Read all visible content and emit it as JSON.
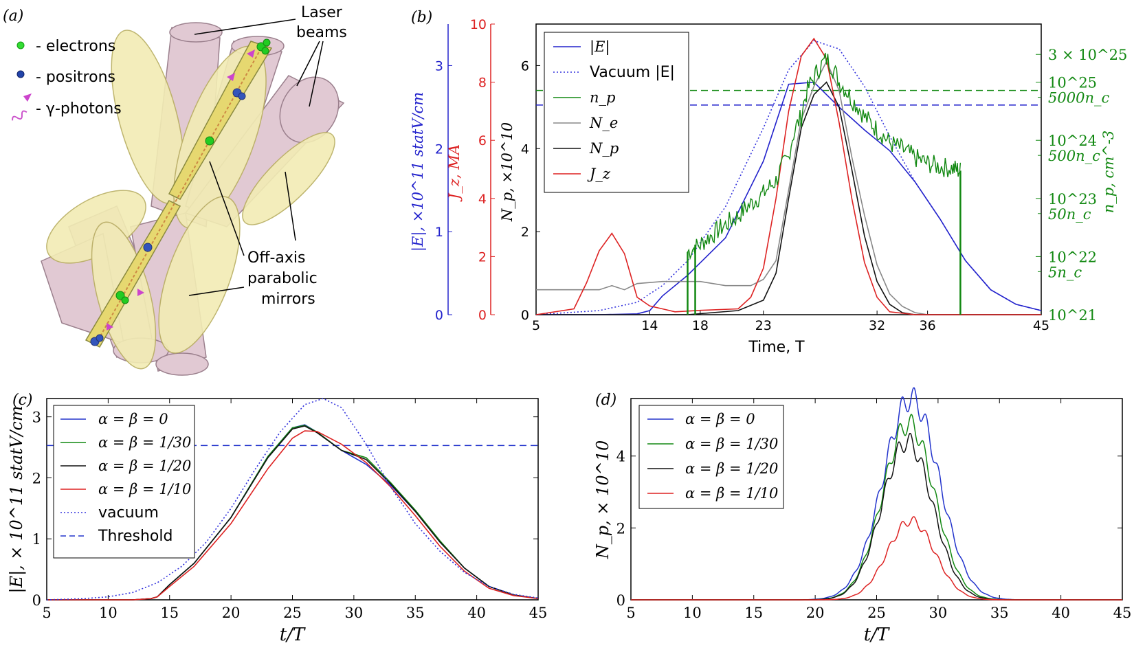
{
  "panel_a": {
    "tag": "(a)",
    "legend": {
      "electrons": "- electrons",
      "positrons": "- positrons",
      "photons": "- γ-photons"
    },
    "laser_label": [
      "Laser",
      "beams"
    ],
    "mirror_label": [
      "Off-axis",
      "parabolic",
      "mirrors"
    ],
    "colors": {
      "electron": "#22cc22",
      "positron": "#2244aa",
      "photon": "#cc44cc",
      "mirror": "#f0eab0",
      "beam": "#d9b8c8"
    }
  },
  "chart_data": [
    {
      "id": "b",
      "tag": "(b)",
      "type": "line",
      "xlabel": "Time, T",
      "xlim": [
        5,
        45
      ],
      "x_ticks": [
        "5",
        "14",
        "18",
        "23",
        "32",
        "36",
        "45"
      ],
      "y_left_np": {
        "label": "N_p, ×10^10",
        "lim": [
          0,
          7
        ],
        "ticks": [
          "0",
          "2",
          "4",
          "6"
        ]
      },
      "y_left_jz": {
        "label": "J_z, MA",
        "lim": [
          0,
          10
        ],
        "ticks": [
          "0",
          "2",
          "4",
          "6",
          "8",
          "10"
        ],
        "color": "#dd2222"
      },
      "y_left_e": {
        "label": "|E|, ×10^11 statV/cm",
        "lim": [
          0,
          3.5
        ],
        "ticks": [
          "0",
          "1",
          "2",
          "3"
        ],
        "color": "#2222cc"
      },
      "y_right": {
        "label": "n_p, cm^-3",
        "scale": "log",
        "lim": [
          1e+21,
          1e+26
        ],
        "color": "#118811",
        "ticks_power": [
          "10^21",
          "10^22",
          "10^23",
          "10^24",
          "10^25",
          "3 × 10^25"
        ],
        "ticks_nc": [
          "5n_c",
          "50n_c",
          "500n_c",
          "5000n_c"
        ]
      },
      "legend": {
        "position": "top-left",
        "entries": [
          "|E|",
          "Vacuum |E|",
          "n_p",
          "N_e",
          "N_p",
          "J_z"
        ]
      },
      "colors": {
        "E": "#2222cc",
        "vac": "#3333dd",
        "np": "#118811",
        "Ne": "#888888",
        "Np": "#111111",
        "Jz": "#dd2222"
      },
      "threshold_blue": 5.05,
      "threshold_green": 5.4,
      "series": [
        {
          "name": "|E|",
          "x": [
            5,
            10,
            13,
            14,
            15,
            17,
            20,
            23,
            25,
            27,
            29,
            31,
            33,
            35,
            37,
            39,
            41,
            43,
            45
          ],
          "y": [
            0,
            0,
            0.02,
            0.1,
            0.45,
            0.95,
            1.85,
            3.7,
            5.55,
            5.6,
            5.0,
            4.45,
            3.95,
            3.2,
            2.3,
            1.3,
            0.6,
            0.25,
            0.1
          ]
        },
        {
          "name": "Vacuum |E|",
          "x": [
            5,
            10,
            13,
            15,
            17,
            20,
            23,
            25,
            27,
            29,
            31,
            33,
            35,
            37,
            39,
            41,
            43,
            45
          ],
          "y": [
            0,
            0.1,
            0.3,
            0.7,
            1.3,
            2.6,
            4.5,
            5.9,
            6.6,
            6.4,
            5.5,
            4.3,
            3.2,
            2.3,
            1.3,
            0.6,
            0.25,
            0.1
          ]
        },
        {
          "name": "N_e",
          "x": [
            5,
            10,
            11,
            12,
            13,
            15,
            18,
            20,
            22,
            23,
            24,
            25,
            26,
            27,
            28,
            29,
            30,
            31,
            32,
            33,
            34,
            35,
            36,
            45
          ],
          "y": [
            0.6,
            0.6,
            0.7,
            0.6,
            0.75,
            0.8,
            0.8,
            0.7,
            0.7,
            0.85,
            1.3,
            3.0,
            4.7,
            5.5,
            6.1,
            5.4,
            3.8,
            2.4,
            1.2,
            0.5,
            0.2,
            0.05,
            0,
            0
          ]
        },
        {
          "name": "N_p",
          "x": [
            5,
            17,
            19,
            21,
            23,
            24,
            25,
            26,
            27,
            28,
            29,
            30,
            31,
            32,
            33,
            34,
            35,
            45
          ],
          "y": [
            0,
            0,
            0.05,
            0.1,
            0.35,
            1.0,
            2.8,
            4.5,
            5.3,
            5.6,
            5.0,
            3.5,
            1.9,
            0.8,
            0.25,
            0.05,
            0,
            0
          ]
        },
        {
          "name": "J_z",
          "x": [
            5,
            8,
            9,
            10,
            11,
            12,
            13,
            14,
            15,
            16,
            18,
            21,
            22,
            23,
            24,
            25,
            26,
            27,
            28,
            29,
            30,
            31,
            32,
            33,
            35,
            45
          ],
          "y": [
            0,
            0.2,
            1.1,
            2.2,
            2.8,
            2.1,
            0.6,
            0.3,
            0.2,
            0.1,
            0.15,
            0.2,
            0.6,
            1.6,
            4.0,
            7.0,
            8.9,
            9.5,
            8.8,
            6.6,
            4.0,
            1.8,
            0.6,
            0.1,
            0,
            0
          ]
        },
        {
          "name": "n_p",
          "x": [
            17,
            18,
            19,
            20,
            21,
            22,
            23,
            24,
            25,
            26,
            27,
            28,
            29,
            30,
            31,
            32,
            33,
            34,
            35,
            36,
            37,
            38,
            38.6
          ],
          "y": [
            1.2e+22,
            1.6e+22,
            2.4e+22,
            3.5e+22,
            5e+22,
            8e+22,
            1.2e+23,
            2e+23,
            5e+23,
            2.5e+24,
            1.2e+25,
            2.5e+25,
            1e+25,
            5e+24,
            2.5e+24,
            1.5e+24,
            9e+23,
            7e+23,
            5e+23,
            4e+23,
            3.5e+23,
            3.3e+23,
            3e+23
          ]
        }
      ]
    },
    {
      "id": "c",
      "tag": "(c)",
      "type": "line",
      "xlabel": "t/T",
      "ylabel": "|E|, × 10^11 statV/cm",
      "xlim": [
        5,
        45
      ],
      "ylim": [
        0,
        3.3
      ],
      "x_ticks": [
        "5",
        "10",
        "15",
        "20",
        "25",
        "30",
        "35",
        "40",
        "45"
      ],
      "y_ticks": [
        "0",
        "1",
        "2",
        "3"
      ],
      "threshold": 2.53,
      "legend": {
        "position": "top-left",
        "entries": [
          "α = β = 0",
          "α = β = 1/30",
          "α = β = 1/20",
          "α = β = 1/10",
          "vacuum",
          "Threshold"
        ]
      },
      "series": [
        {
          "name": "α = β = 0",
          "color": "#2233cc",
          "x": [
            5,
            12,
            13.5,
            14,
            15,
            17,
            20,
            23,
            25,
            26,
            27,
            29,
            31,
            33,
            35,
            37,
            39,
            41,
            43,
            45
          ],
          "y": [
            0,
            0,
            0.02,
            0.05,
            0.25,
            0.6,
            1.35,
            2.35,
            2.82,
            2.87,
            2.75,
            2.45,
            2.22,
            1.88,
            1.45,
            0.95,
            0.52,
            0.22,
            0.08,
            0.02
          ]
        },
        {
          "name": "α = β = 1/30",
          "color": "#118811",
          "x": [
            5,
            12,
            13.5,
            14,
            15,
            17,
            20,
            23,
            25,
            26,
            27,
            29,
            31,
            33,
            35,
            37,
            39,
            41,
            43,
            45
          ],
          "y": [
            0,
            0,
            0.02,
            0.05,
            0.25,
            0.6,
            1.35,
            2.35,
            2.82,
            2.86,
            2.75,
            2.45,
            2.33,
            1.92,
            1.47,
            0.97,
            0.52,
            0.22,
            0.08,
            0.02
          ]
        },
        {
          "name": "α = β = 1/20",
          "color": "#111111",
          "x": [
            5,
            12,
            13.5,
            14,
            15,
            17,
            20,
            23,
            25,
            26,
            27,
            29,
            31,
            33,
            35,
            37,
            39,
            41,
            43,
            45
          ],
          "y": [
            0,
            0,
            0.02,
            0.05,
            0.25,
            0.6,
            1.35,
            2.33,
            2.8,
            2.85,
            2.74,
            2.45,
            2.3,
            1.9,
            1.45,
            0.95,
            0.52,
            0.22,
            0.08,
            0.02
          ]
        },
        {
          "name": "α = β = 1/10",
          "color": "#dd2222",
          "x": [
            5,
            12,
            13.5,
            14,
            15,
            17,
            20,
            23,
            25,
            26,
            27,
            29,
            31,
            33,
            35,
            37,
            39,
            41,
            43,
            45
          ],
          "y": [
            0,
            0,
            0.02,
            0.05,
            0.22,
            0.55,
            1.25,
            2.15,
            2.65,
            2.77,
            2.76,
            2.55,
            2.25,
            1.85,
            1.38,
            0.88,
            0.47,
            0.19,
            0.07,
            0.02
          ]
        },
        {
          "name": "vacuum",
          "color": "#3333dd",
          "x": [
            5,
            8,
            10,
            12,
            14,
            16,
            18,
            20,
            22,
            24,
            26,
            27.5,
            29,
            31,
            33,
            35,
            37,
            39,
            41,
            43,
            45
          ],
          "y": [
            0,
            0.02,
            0.05,
            0.12,
            0.28,
            0.55,
            0.95,
            1.5,
            2.15,
            2.75,
            3.2,
            3.3,
            3.15,
            2.55,
            1.85,
            1.25,
            0.8,
            0.45,
            0.22,
            0.09,
            0.03
          ]
        }
      ]
    },
    {
      "id": "d",
      "tag": "(d)",
      "type": "line",
      "xlabel": "t/T",
      "ylabel": "N_p, × 10^10",
      "xlim": [
        5,
        45
      ],
      "ylim": [
        0,
        5.6
      ],
      "x_ticks": [
        "5",
        "10",
        "15",
        "20",
        "25",
        "30",
        "35",
        "40",
        "45"
      ],
      "y_ticks": [
        "0",
        "2",
        "4"
      ],
      "legend": {
        "position": "top-left",
        "entries": [
          "α = β = 0",
          "α = β = 1/30",
          "α = β = 1/20",
          "α = β = 1/10"
        ]
      },
      "series": [
        {
          "name": "α = β = 0",
          "color": "#2233cc",
          "center": 27.8,
          "width": 2.6,
          "peak": 5.6
        },
        {
          "name": "α = β = 1/30",
          "color": "#118811",
          "center": 27.6,
          "width": 2.4,
          "peak": 4.9
        },
        {
          "name": "α = β = 1/20",
          "color": "#111111",
          "center": 27.5,
          "width": 2.35,
          "peak": 4.4
        },
        {
          "name": "α = β = 1/10",
          "color": "#dd2222",
          "center": 27.8,
          "width": 2.2,
          "peak": 2.2
        }
      ]
    }
  ]
}
